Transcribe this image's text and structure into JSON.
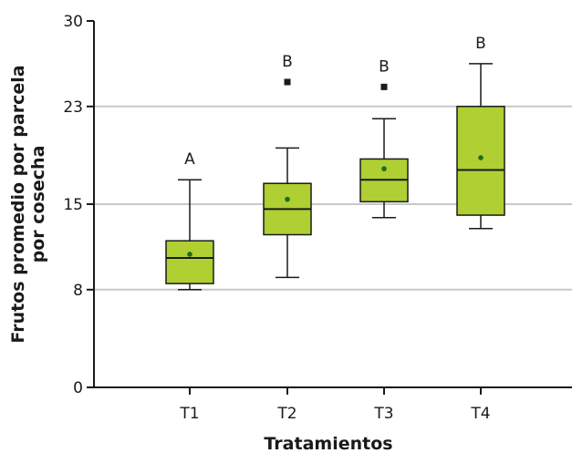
{
  "chart_data": {
    "type": "box",
    "title": "",
    "xlabel": "Tratamientos",
    "ylabel_lines": [
      "Frutos promedio por parcela",
      "por cosecha"
    ],
    "ylim": [
      0,
      30
    ],
    "yticks": [
      0,
      8,
      15,
      23,
      30
    ],
    "gridlines_at": [
      8,
      15,
      23
    ],
    "grid": true,
    "colors": {
      "box_fill": "#afcf32",
      "grid": "#c8c8c8",
      "axis": "#1a1a1a",
      "mean_dot": "#1e6b1e"
    },
    "categories": [
      "T1",
      "T2",
      "T3",
      "T4"
    ],
    "boxes": [
      {
        "label": "T1",
        "whisker_low": 8.0,
        "q1": 8.5,
        "median": 10.6,
        "q3": 12.0,
        "whisker_high": 17.0,
        "mean": 10.9,
        "outliers": [],
        "letter": "A"
      },
      {
        "label": "T2",
        "whisker_low": 9.0,
        "q1": 12.5,
        "median": 14.6,
        "q3": 16.7,
        "whisker_high": 19.6,
        "mean": 15.4,
        "outliers": [
          25.0
        ],
        "letter": "B"
      },
      {
        "label": "T3",
        "whisker_low": 13.9,
        "q1": 15.2,
        "median": 17.0,
        "q3": 18.7,
        "whisker_high": 22.0,
        "mean": 17.9,
        "outliers": [
          24.6
        ],
        "letter": "B"
      },
      {
        "label": "T4",
        "whisker_low": 13.0,
        "q1": 14.1,
        "median": 17.8,
        "q3": 23.0,
        "whisker_high": 26.5,
        "mean": 18.8,
        "outliers": [],
        "letter": "B"
      }
    ]
  }
}
